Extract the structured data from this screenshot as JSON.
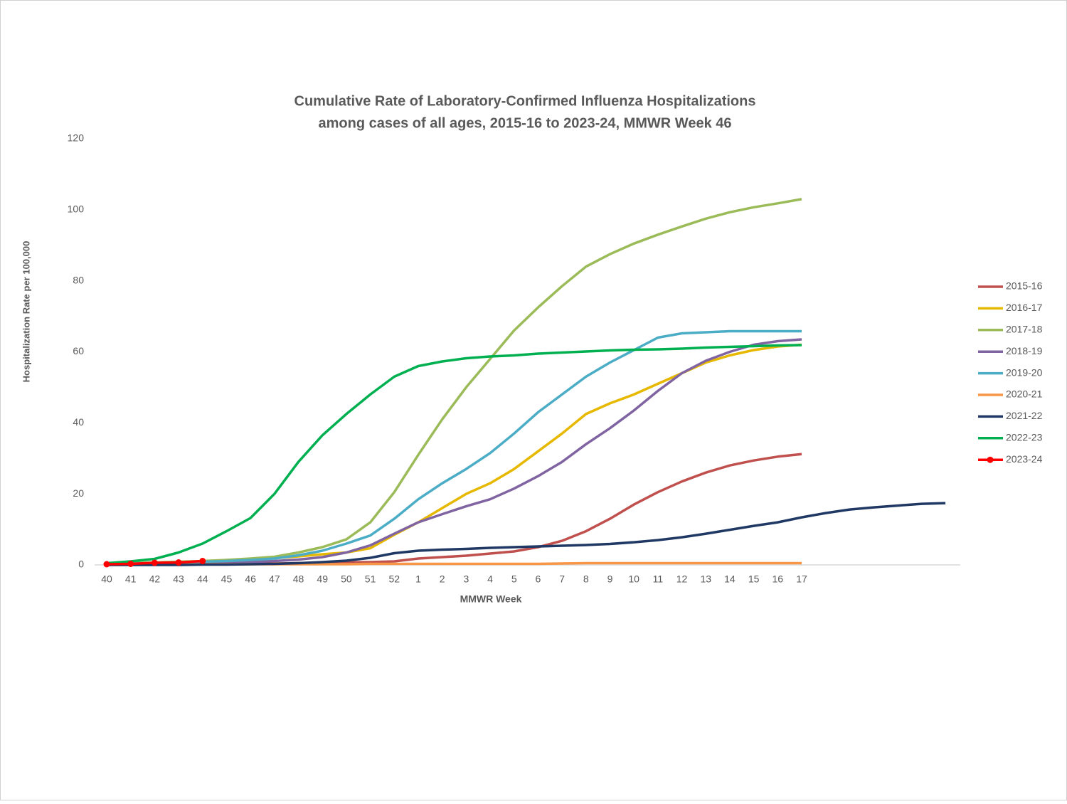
{
  "chart_data": {
    "type": "line",
    "title": "Cumulative Rate of Laboratory-Confirmed Influenza Hospitalizations",
    "subtitle": "among cases of all ages, 2015-16 to 2023-24, MMWR Week 46",
    "x_label": "MMWR Week",
    "y_label": "Hospitalization Rate per 100,000",
    "categories": [
      "40",
      "41",
      "42",
      "43",
      "44",
      "45",
      "46",
      "47",
      "48",
      "49",
      "50",
      "51",
      "52",
      "1",
      "2",
      "3",
      "4",
      "5",
      "6",
      "7",
      "8",
      "9",
      "10",
      "11",
      "12",
      "13",
      "14",
      "15",
      "16",
      "17",
      null,
      null,
      null,
      null,
      null,
      null
    ],
    "ylim": [
      0,
      120
    ],
    "yticks": [
      0,
      20,
      40,
      60,
      80,
      100,
      120
    ],
    "grid": false,
    "legend": "right",
    "series": [
      {
        "name": "2015-16",
        "color": "#c0504d",
        "values": [
          0.1,
          0.1,
          0.2,
          0.2,
          0.2,
          0.3,
          0.3,
          0.4,
          0.5,
          0.6,
          0.7,
          0.8,
          1.0,
          1.8,
          2.2,
          2.6,
          3.2,
          3.8,
          5,
          6.8,
          9.5,
          13,
          17,
          20.5,
          23.5,
          26,
          28,
          29.4,
          30.5,
          31.2,
          null,
          null,
          null,
          null,
          null,
          null
        ]
      },
      {
        "name": "2016-17",
        "color": "#e6b800",
        "values": [
          0.2,
          0.3,
          0.4,
          0.6,
          0.8,
          1.1,
          1.5,
          1.9,
          2.4,
          3,
          3.5,
          4.7,
          8.5,
          12,
          16,
          20,
          23,
          27,
          32,
          37,
          42.5,
          45.5,
          48,
          51,
          54,
          57,
          59,
          60.5,
          61.5,
          62,
          null,
          null,
          null,
          null,
          null,
          null
        ]
      },
      {
        "name": "2017-18",
        "color": "#9bbb59",
        "values": [
          0.3,
          0.5,
          0.7,
          0.9,
          1.1,
          1.4,
          1.8,
          2.3,
          3.5,
          5,
          7.2,
          12,
          20.5,
          31,
          41,
          50,
          58,
          66,
          72.5,
          78.5,
          84,
          87.5,
          90.5,
          93,
          95.3,
          97.5,
          99.3,
          100.7,
          101.8,
          103,
          null,
          null,
          null,
          null,
          null,
          null
        ]
      },
      {
        "name": "2018-19",
        "color": "#8064a2",
        "values": [
          0.1,
          0.2,
          0.3,
          0.4,
          0.5,
          0.6,
          0.8,
          1.1,
          1.5,
          2.2,
          3.5,
          5.5,
          8.8,
          12,
          14.3,
          16.5,
          18.5,
          21.5,
          25,
          29,
          34,
          38.5,
          43.5,
          49,
          54,
          57.5,
          60,
          62,
          63,
          63.5,
          null,
          null,
          null,
          null,
          null,
          null
        ]
      },
      {
        "name": "2019-20",
        "color": "#4bacc6",
        "values": [
          0.3,
          0.4,
          0.5,
          0.7,
          0.9,
          1.1,
          1.4,
          1.8,
          2.7,
          4,
          6,
          8.3,
          13,
          18.5,
          23,
          27,
          31.5,
          37,
          43,
          48,
          53,
          57,
          60.5,
          64,
          65.2,
          65.5,
          65.8,
          65.8,
          65.8,
          65.8,
          null,
          null,
          null,
          null,
          null,
          null
        ]
      },
      {
        "name": "2020-21",
        "color": "#f79646",
        "values": [
          0.1,
          0.1,
          0.1,
          0.1,
          0.2,
          0.2,
          0.2,
          0.2,
          0.2,
          0.2,
          0.2,
          0.3,
          0.3,
          0.3,
          0.3,
          0.3,
          0.3,
          0.3,
          0.3,
          0.4,
          0.5,
          0.5,
          0.5,
          0.5,
          0.5,
          0.5,
          0.5,
          0.5,
          0.5,
          0.5,
          null,
          null,
          null,
          null,
          null,
          null
        ]
      },
      {
        "name": "2021-22",
        "color": "#1f3864",
        "values": [
          0,
          0,
          0,
          0,
          0.1,
          0.1,
          0.2,
          0.3,
          0.5,
          0.8,
          1.2,
          2,
          3.3,
          4,
          4.3,
          4.5,
          4.8,
          5,
          5.2,
          5.4,
          5.6,
          5.9,
          6.4,
          7,
          7.8,
          8.8,
          9.9,
          11,
          12,
          13.4,
          14.6,
          15.6,
          16.2,
          16.7,
          17.2,
          17.4
        ]
      },
      {
        "name": "2022-23",
        "color": "#00b050",
        "values": [
          0.5,
          1,
          1.7,
          3.5,
          6,
          9.5,
          13.2,
          20,
          29,
          36.5,
          42.5,
          48,
          53,
          56,
          57.3,
          58.2,
          58.7,
          59,
          59.5,
          59.8,
          60.1,
          60.4,
          60.6,
          60.7,
          60.9,
          61.2,
          61.4,
          61.6,
          61.8,
          61.9,
          null,
          null,
          null,
          null,
          null,
          null
        ]
      },
      {
        "name": "2023-24",
        "color": "#ff0000",
        "markers": true,
        "values": [
          0.2,
          0.3,
          0.6,
          0.7,
          1.1,
          null,
          null,
          null,
          null,
          null,
          null,
          null,
          null,
          null,
          null,
          null,
          null,
          null,
          null,
          null,
          null,
          null,
          null,
          null,
          null,
          null,
          null,
          null,
          null,
          null,
          null,
          null,
          null,
          null,
          null,
          null
        ]
      }
    ]
  }
}
